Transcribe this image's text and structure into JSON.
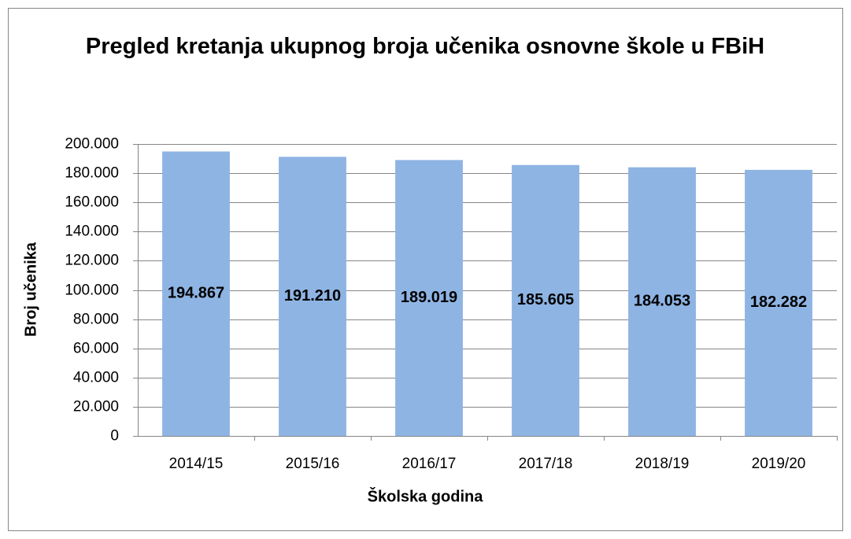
{
  "chart_data": {
    "type": "bar",
    "title": "Pregled kretanja ukupnog broja učenika osnovne škole u FBiH",
    "x_label": "Školska godina",
    "y_label": "Broj učenika",
    "categories": [
      "2014/15",
      "2015/16",
      "2016/17",
      "2017/18",
      "2018/19",
      "2019/20"
    ],
    "values": [
      194867,
      191210,
      189019,
      185605,
      184053,
      182282
    ],
    "value_labels": [
      "194.867",
      "191.210",
      "189.019",
      "185.605",
      "184.053",
      "182.282"
    ],
    "color": "#8eb4e3",
    "ylim": [
      0,
      200000
    ],
    "yticks": [
      0,
      {
        "value": 20000,
        "label": "20.000"
      },
      {
        "value": 40000,
        "label": "40.000"
      },
      {
        "value": 60000,
        "label": "60.000"
      },
      {
        "value": 80000,
        "label": "80.000"
      },
      {
        "value": 100000,
        "label": "100.000"
      },
      {
        "value": 120000,
        "label": "120.000"
      },
      {
        "value": 140000,
        "label": "140.000"
      },
      {
        "value": 160000,
        "label": "160.000"
      },
      {
        "value": 180000,
        "label": "180.000"
      },
      {
        "value": 200000,
        "label": "200.000"
      }
    ],
    "grid": true
  }
}
